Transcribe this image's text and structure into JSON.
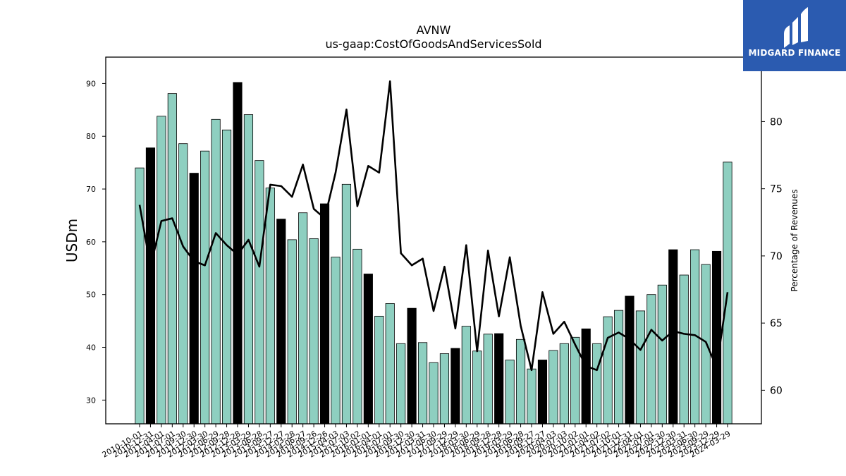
{
  "logo": {
    "text": "MIDGARD FINANCE",
    "background": "#2b5bb0"
  },
  "colors": {
    "bar_fill": "#8ecfc0",
    "bar_highlight": "#000000",
    "line": "#000000"
  },
  "chart_data": {
    "type": "bar",
    "title": "AVNW",
    "subtitle": "us-gaap:CostOfGoodsAndServicesSold",
    "ylabel": "USDm",
    "y2label": "Percentage of Revenues",
    "ylim": [
      25.5,
      95
    ],
    "y2lim": [
      57.5,
      84.8
    ],
    "yticks": [
      30,
      40,
      50,
      60,
      70,
      80,
      90
    ],
    "y2ticks": [
      60,
      65,
      70,
      75,
      80
    ],
    "grid": false,
    "categories": [
      "2010-10-01",
      "2010-12-31",
      "2011-04-01",
      "2011-07-01",
      "2011-09-30",
      "2011-12-30",
      "2012-03-30",
      "2012-06-29",
      "2012-09-28",
      "2012-12-28",
      "2013-03-29",
      "2013-06-28",
      "2013-09-27",
      "2013-12-27",
      "2014-03-28",
      "2014-06-27",
      "2014-09-26",
      "2014-12-26",
      "2015-04-03",
      "2015-07-03",
      "2015-10-02",
      "2016-01-01",
      "2016-04-01",
      "2016-07-01",
      "2016-09-30",
      "2016-12-30",
      "2017-03-31",
      "2017-06-30",
      "2017-09-29",
      "2017-12-29",
      "2018-03-30",
      "2018-06-29",
      "2018-09-28",
      "2018-12-28",
      "2019-03-29",
      "2019-06-28",
      "2019-09-27",
      "2019-12-27",
      "2020-04-03",
      "2020-07-03",
      "2020-10-02",
      "2021-01-01",
      "2021-04-02",
      "2021-07-02",
      "2021-10-01",
      "2021-12-31",
      "2022-04-01",
      "2022-07-01",
      "2022-09-30",
      "2022-12-30",
      "2023-03-31",
      "2023-06-30",
      "2023-09-29",
      "2023-12-29",
      "2024-03-29"
    ],
    "series": [
      {
        "type": "bar",
        "values": [
          74.0,
          77.8,
          83.8,
          88.1,
          78.6,
          73.0,
          77.2,
          83.2,
          81.2,
          90.2,
          84.1,
          75.4,
          70.2,
          64.3,
          60.4,
          65.5,
          60.6,
          67.2,
          57.1,
          70.9,
          58.6,
          53.9,
          45.9,
          48.3,
          40.7,
          47.4,
          40.9,
          37.1,
          38.8,
          39.8,
          44.0,
          39.3,
          42.5,
          42.6,
          37.6,
          41.5,
          35.9,
          37.6,
          39.4,
          40.7,
          41.9,
          43.5,
          40.7,
          45.8,
          47.0,
          49.7,
          46.9,
          50.0,
          51.8,
          58.5,
          53.7,
          58.5,
          55.7,
          58.2,
          75.1
        ],
        "highlighted": [
          false,
          true,
          false,
          false,
          false,
          true,
          false,
          false,
          false,
          true,
          false,
          false,
          false,
          true,
          false,
          false,
          false,
          true,
          false,
          false,
          false,
          true,
          false,
          false,
          false,
          true,
          false,
          false,
          false,
          true,
          false,
          false,
          false,
          true,
          false,
          false,
          false,
          true,
          false,
          false,
          false,
          true,
          false,
          false,
          false,
          true,
          false,
          false,
          false,
          true,
          false,
          false,
          false,
          true,
          false
        ]
      },
      {
        "type": "line",
        "axis": "right",
        "values": [
          73.8,
          69.2,
          72.6,
          72.8,
          70.7,
          69.6,
          69.3,
          71.7,
          70.8,
          70.1,
          71.2,
          69.2,
          75.3,
          75.2,
          74.4,
          76.8,
          73.5,
          72.8,
          76.2,
          80.9,
          73.7,
          76.7,
          76.2,
          83.0,
          70.2,
          69.3,
          69.8,
          65.9,
          69.2,
          64.6,
          70.8,
          62.9,
          70.4,
          65.5,
          69.9,
          64.8,
          61.5,
          67.3,
          64.2,
          65.1,
          63.4,
          61.8,
          61.5,
          63.9,
          64.3,
          63.8,
          63.0,
          64.5,
          63.7,
          64.4,
          64.2,
          64.1,
          63.6,
          61.7,
          67.3
        ]
      }
    ]
  }
}
